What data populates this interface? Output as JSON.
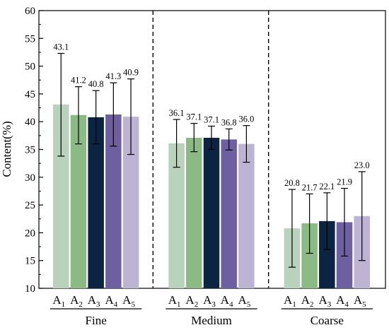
{
  "chart_data": {
    "type": "bar",
    "ylabel": "Content(%)",
    "ylim": [
      10,
      60
    ],
    "yticks": [
      10,
      15,
      20,
      25,
      30,
      35,
      40,
      45,
      50,
      55,
      60
    ],
    "grid": false,
    "legend": "none",
    "category_labels": [
      {
        "base": "A",
        "sub": "1"
      },
      {
        "base": "A",
        "sub": "2"
      },
      {
        "base": "A",
        "sub": "3"
      },
      {
        "base": "A",
        "sub": "4"
      },
      {
        "base": "A",
        "sub": "5"
      }
    ],
    "series_colors": [
      "#b9d2bc",
      "#8cba84",
      "#0c2341",
      "#6d5fa0",
      "#bcb4d2"
    ],
    "groups": [
      {
        "name": "Fine",
        "values": [
          43.1,
          41.2,
          40.8,
          41.3,
          40.9
        ],
        "error_low": [
          33.8,
          36.0,
          36.0,
          35.6,
          34.1
        ],
        "error_high": [
          52.3,
          46.3,
          45.6,
          47.0,
          47.7
        ],
        "value_labels": [
          "43.1",
          "41.2",
          "40.8",
          "41.3",
          "40.9"
        ]
      },
      {
        "name": "Medium",
        "values": [
          36.1,
          37.1,
          37.1,
          36.8,
          36.0
        ],
        "error_low": [
          31.8,
          34.6,
          35.0,
          34.9,
          32.7
        ],
        "error_high": [
          40.4,
          39.7,
          39.2,
          38.7,
          39.3
        ],
        "value_labels": [
          "36.1",
          "37.1",
          "37.1",
          "36.8",
          "36.0"
        ]
      },
      {
        "name": "Coarse",
        "values": [
          20.8,
          21.7,
          22.1,
          21.9,
          23.0
        ],
        "error_low": [
          13.8,
          16.3,
          17.0,
          15.8,
          15.0
        ],
        "error_high": [
          27.8,
          27.0,
          27.2,
          28.0,
          31.0
        ],
        "value_labels": [
          "20.8",
          "21.7",
          "22.1",
          "21.9",
          "23.0"
        ]
      }
    ]
  }
}
